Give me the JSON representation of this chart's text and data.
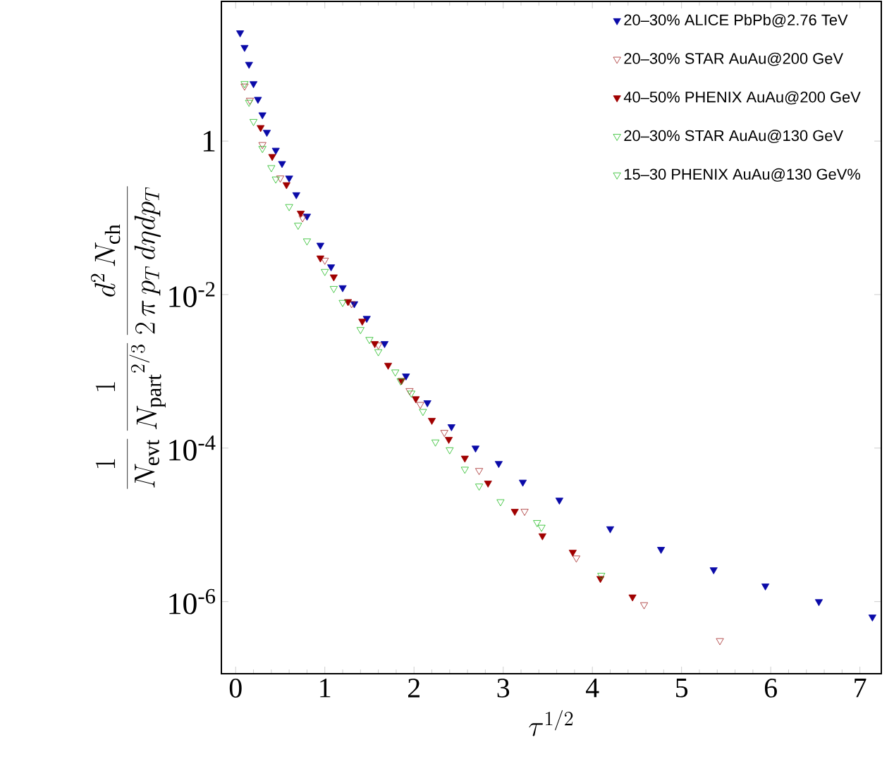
{
  "chart_data": {
    "type": "scatter",
    "xlabel": "\\tau^{1/2}",
    "ylabel": "\\frac{1}{N_{\\mathrm{evt}}}\\,\\frac{1}{{N_{\\mathrm{part}}}^{2/3}}\\,\\frac{d^2\\,N_{\\mathrm{ch}}}{2\\,\\pi\\, p_T\\, d\\eta dp_T}",
    "log": "y",
    "legend": "top right",
    "grid": false,
    "xlim": [
      -0.16,
      7.24
    ],
    "ylim": [
      1.15e-07,
      66
    ],
    "xticks": [
      0,
      1,
      2,
      3,
      4,
      5,
      6,
      7
    ],
    "yticks": [
      {
        "value": 1,
        "label": "1"
      },
      {
        "value": 0.01,
        "label": "10$^{-2}$"
      },
      {
        "value": 0.0001,
        "label": "10$^{-4}$"
      },
      {
        "value": 1e-06,
        "label": "10$^{-6}$"
      }
    ],
    "series": [
      {
        "name": "20–30% ALICE PbPb@2.76 TeV",
        "color": "#0a0aa8",
        "marker": "triangle",
        "x": [
          0.05,
          0.1,
          0.15,
          0.2,
          0.25,
          0.3,
          0.35,
          0.45,
          0.52,
          0.6,
          0.68,
          0.8,
          0.95,
          1.07,
          1.2,
          1.33,
          1.47,
          1.67,
          1.91,
          2.15,
          2.42,
          2.69,
          2.95,
          3.22,
          3.63,
          4.2,
          4.77,
          5.36,
          5.94,
          6.54,
          7.14
        ],
        "values": [
          25.7,
          16.6,
          10,
          5.6,
          3.5,
          2.2,
          1.3,
          0.76,
          0.51,
          0.33,
          0.2,
          0.105,
          0.044,
          0.023,
          0.0123,
          0.0076,
          0.0049,
          0.0023,
          0.00087,
          0.00039,
          0.00019,
          0.0001,
          6.3e-05,
          3.6e-05,
          2.1e-05,
          8.9e-06,
          4.8e-06,
          2.6e-06,
          1.6e-06,
          1e-06,
          6.3e-07
        ]
      },
      {
        "name": "20–30% STAR AuAu@200 GeV",
        "color": "#a52a2a",
        "marker": "triangle open",
        "x": [
          0.1,
          0.16,
          0.3,
          0.5,
          0.75,
          1.0,
          1.3,
          1.6,
          1.95,
          2.07,
          2.34,
          2.73,
          3.24,
          3.82,
          4.58,
          5.43
        ],
        "values": [
          5.2,
          3.4,
          0.9,
          0.33,
          0.1,
          0.028,
          0.0076,
          0.0022,
          0.00056,
          0.00037,
          0.00016,
          5.1e-05,
          1.5e-05,
          3.7e-06,
          9.1e-07,
          3.1e-07
        ]
      },
      {
        "name": "40–50% PHENIX AuAu@200 GeV",
        "color": "#a00000",
        "marker": "triangle",
        "x": [
          0.28,
          0.41,
          0.57,
          0.73,
          0.95,
          1.1,
          1.26,
          1.42,
          1.56,
          1.71,
          1.86,
          2.02,
          2.2,
          2.39,
          2.57,
          2.83,
          3.13,
          3.44,
          3.78,
          4.09,
          4.45
        ],
        "values": [
          1.5,
          0.63,
          0.27,
          0.115,
          0.03,
          0.017,
          0.0081,
          0.0045,
          0.0023,
          0.0012,
          0.00076,
          0.00044,
          0.00023,
          0.00013,
          7.4e-05,
          3.5e-05,
          1.5e-05,
          7.2e-06,
          4.4e-06,
          2e-06,
          1.15e-06
        ]
      },
      {
        "name": "20–30% STAR AuAu@130 GeV",
        "color": "#22bb22",
        "marker": "triangle open",
        "x": [
          0.1,
          0.2,
          0.3,
          0.45,
          0.6,
          0.8,
          1.0,
          1.2,
          1.4,
          1.6,
          1.79,
          1.97,
          2.1,
          2.4,
          2.73,
          3.38
        ],
        "values": [
          5.6,
          1.8,
          0.8,
          0.32,
          0.14,
          0.05,
          0.02,
          0.0079,
          0.0035,
          0.0018,
          0.00098,
          0.00052,
          0.0003,
          9.5e-05,
          3.2e-05,
          1.07e-05
        ]
      },
      {
        "name": "15–30 PHENIX AuAu@130 GeV%",
        "color": "#22bb22",
        "marker": "triangle open",
        "x": [
          0.15,
          0.4,
          0.7,
          1.1,
          1.5,
          1.85,
          2.24,
          2.57,
          2.97,
          3.43,
          4.1
        ],
        "values": [
          3.2,
          0.45,
          0.08,
          0.012,
          0.0026,
          0.00075,
          0.00012,
          5.3e-05,
          2e-05,
          9.3e-06,
          2.2e-06
        ]
      }
    ]
  }
}
